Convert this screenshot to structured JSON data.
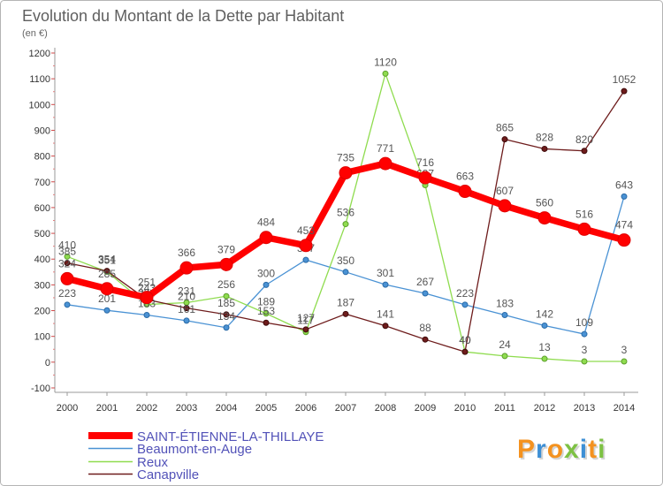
{
  "chart_data": {
    "type": "line",
    "title": "Evolution du Montant de la Dette par Habitant",
    "subtitle": "(en €)",
    "xlabel": "",
    "ylabel": "",
    "x": [
      2000,
      2001,
      2002,
      2003,
      2004,
      2005,
      2006,
      2007,
      2008,
      2009,
      2010,
      2011,
      2012,
      2013,
      2014
    ],
    "ylim": [
      -100,
      1200
    ],
    "yticks": [
      -100,
      0,
      100,
      200,
      300,
      400,
      500,
      600,
      700,
      800,
      900,
      1000,
      1100,
      1200
    ],
    "grid": false,
    "legend": "bottom-left",
    "data_labels": true,
    "series": [
      {
        "name": "SAINT-ÉTIENNE-LA-THILLAYE",
        "color": "#ff0000",
        "marker_stroke": "#e00000",
        "values": [
          324,
          285,
          251,
          366,
          379,
          484,
          453,
          735,
          771,
          716,
          663,
          607,
          560,
          516,
          474
        ]
      },
      {
        "name": "Beaumont-en-Auge",
        "color": "#4a92d4",
        "marker_stroke": "#2a6aa6",
        "values": [
          223,
          201,
          183,
          161,
          134,
          300,
          397,
          350,
          301,
          267,
          223,
          183,
          142,
          109,
          643
        ]
      },
      {
        "name": "Reux",
        "color": "#8fdc4f",
        "marker_stroke": "#5c9e2c",
        "values": [
          410,
          351,
          224,
          231,
          256,
          189,
          117,
          536,
          1120,
          687,
          40,
          24,
          13,
          3,
          3
        ]
      },
      {
        "name": "Canapville",
        "color": "#6e1c1c",
        "marker_stroke": "#3e0a0a",
        "values": [
          385,
          354,
          243,
          210,
          185,
          153,
          127,
          187,
          141,
          88,
          40,
          865,
          828,
          820,
          1052
        ]
      }
    ]
  },
  "logo": {
    "text": "Proxiti",
    "letter_colors": [
      "#f4921f",
      "#3d8fd5",
      "#f4921f",
      "#7dc143",
      "#3d8fd5",
      "#f4921f",
      "#7dc143"
    ]
  }
}
